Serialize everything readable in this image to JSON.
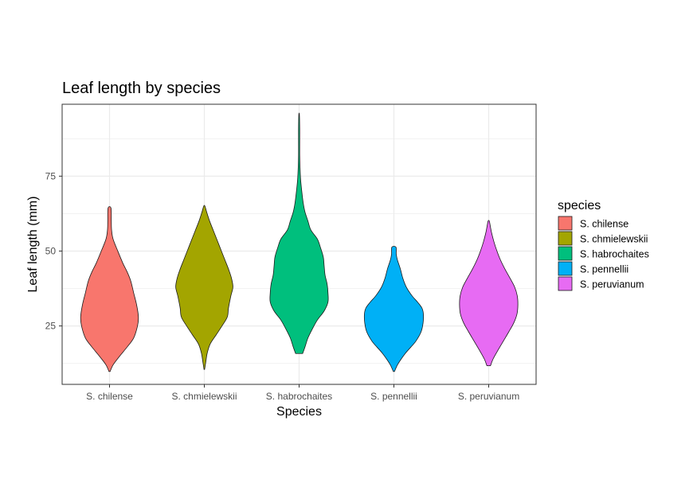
{
  "chart_data": {
    "type": "violin",
    "title": "Leaf length by species",
    "xlabel": "Species",
    "ylabel": "Leaf length (mm)",
    "ylim": [
      5.5,
      99
    ],
    "yticks": [
      25,
      50,
      75
    ],
    "ytick_labels": [
      "25",
      "50",
      "75"
    ],
    "grid": true,
    "legend": {
      "title": "species",
      "position": "right"
    },
    "categories": [
      "S. chilense",
      "S. chmielewskii",
      "S. habrochaites",
      "S. pennellii",
      "S. peruvianum"
    ],
    "series": [
      {
        "name": "S. chilense",
        "color": "#F8766D",
        "min": 9.8,
        "max": 64.3,
        "profile": [
          [
            9.8,
            0.02
          ],
          [
            12,
            0.12
          ],
          [
            15,
            0.35
          ],
          [
            18,
            0.6
          ],
          [
            21,
            0.82
          ],
          [
            25,
            0.95
          ],
          [
            28,
            0.98
          ],
          [
            32,
            0.92
          ],
          [
            36,
            0.82
          ],
          [
            40,
            0.72
          ],
          [
            43,
            0.6
          ],
          [
            46,
            0.45
          ],
          [
            50,
            0.28
          ],
          [
            54,
            0.12
          ],
          [
            57,
            0.07
          ],
          [
            60,
            0.06
          ],
          [
            64.3,
            0.05
          ]
        ]
      },
      {
        "name": "S. chmielewskii",
        "color": "#A3A500",
        "min": 10.5,
        "max": 65,
        "profile": [
          [
            10.5,
            0.01
          ],
          [
            13,
            0.05
          ],
          [
            16,
            0.1
          ],
          [
            19,
            0.2
          ],
          [
            22,
            0.4
          ],
          [
            25,
            0.6
          ],
          [
            28,
            0.78
          ],
          [
            31,
            0.82
          ],
          [
            35,
            0.9
          ],
          [
            38,
            0.97
          ],
          [
            41,
            0.92
          ],
          [
            44,
            0.82
          ],
          [
            47,
            0.7
          ],
          [
            50,
            0.58
          ],
          [
            54,
            0.42
          ],
          [
            57,
            0.3
          ],
          [
            60,
            0.18
          ],
          [
            63,
            0.08
          ],
          [
            65,
            0.02
          ]
        ]
      },
      {
        "name": "S. habrochaites",
        "color": "#00BF7D",
        "min": 15.8,
        "max": 95.5,
        "profile": [
          [
            15.8,
            0.12
          ],
          [
            18,
            0.2
          ],
          [
            21,
            0.3
          ],
          [
            24,
            0.45
          ],
          [
            27,
            0.62
          ],
          [
            30,
            0.85
          ],
          [
            33,
            0.98
          ],
          [
            36,
            0.98
          ],
          [
            39,
            0.95
          ],
          [
            42,
            0.88
          ],
          [
            45,
            0.85
          ],
          [
            48,
            0.82
          ],
          [
            51,
            0.73
          ],
          [
            54,
            0.62
          ],
          [
            57,
            0.4
          ],
          [
            60,
            0.3
          ],
          [
            63,
            0.2
          ],
          [
            66,
            0.14
          ],
          [
            70,
            0.09
          ],
          [
            74,
            0.05
          ],
          [
            78,
            0.03
          ],
          [
            82,
            0.02
          ],
          [
            87,
            0.02
          ],
          [
            91,
            0.02
          ],
          [
            95.5,
            0.01
          ]
        ]
      },
      {
        "name": "S. pennellii",
        "color": "#00B0F6",
        "min": 9.8,
        "max": 51.3,
        "profile": [
          [
            9.8,
            0.02
          ],
          [
            12,
            0.12
          ],
          [
            14,
            0.25
          ],
          [
            16,
            0.4
          ],
          [
            18,
            0.58
          ],
          [
            20,
            0.75
          ],
          [
            23,
            0.92
          ],
          [
            26,
            0.99
          ],
          [
            29,
            1.0
          ],
          [
            31,
            0.95
          ],
          [
            33,
            0.8
          ],
          [
            35,
            0.62
          ],
          [
            38,
            0.42
          ],
          [
            41,
            0.3
          ],
          [
            44,
            0.22
          ],
          [
            47,
            0.12
          ],
          [
            49,
            0.08
          ],
          [
            51.3,
            0.07
          ]
        ]
      },
      {
        "name": "S. peruvianum",
        "color": "#E76BF3",
        "min": 11.7,
        "max": 60,
        "profile": [
          [
            11.7,
            0.06
          ],
          [
            14,
            0.15
          ],
          [
            17,
            0.32
          ],
          [
            20,
            0.5
          ],
          [
            23,
            0.68
          ],
          [
            26,
            0.85
          ],
          [
            29,
            0.96
          ],
          [
            32,
            0.99
          ],
          [
            35,
            0.97
          ],
          [
            38,
            0.88
          ],
          [
            41,
            0.72
          ],
          [
            44,
            0.55
          ],
          [
            47,
            0.4
          ],
          [
            50,
            0.28
          ],
          [
            53,
            0.18
          ],
          [
            56,
            0.1
          ],
          [
            58,
            0.06
          ],
          [
            60,
            0.02
          ]
        ]
      }
    ]
  }
}
